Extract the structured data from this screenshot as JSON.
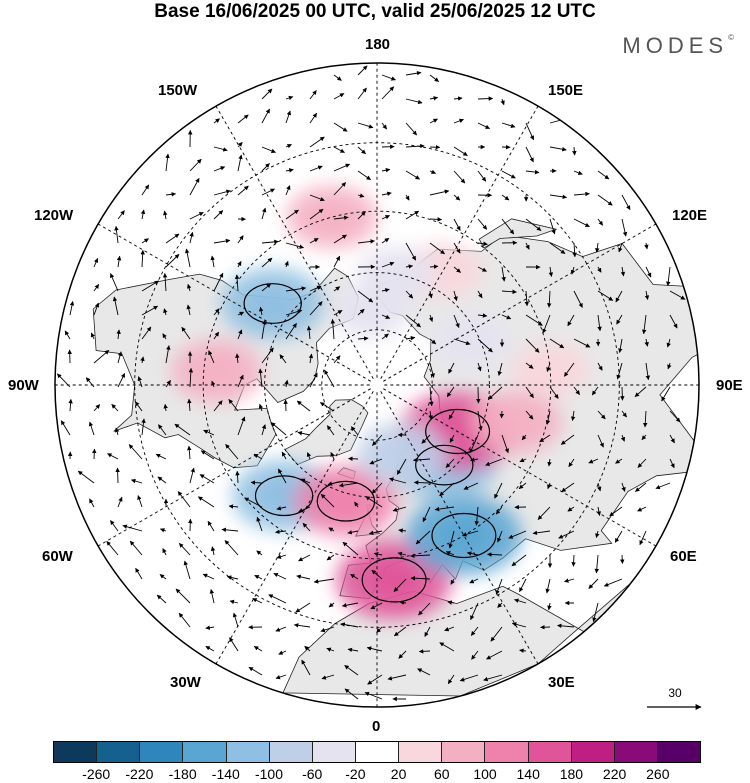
{
  "header": {
    "title": "Base 16/06/2025 00 UTC, valid 25/06/2025 12 UTC",
    "brand": "MODES",
    "brand_mark": "©"
  },
  "map": {
    "projection": "polar-stereographic-north",
    "longitude_labels": {
      "top": "180",
      "bottom": "0",
      "left": "90W",
      "right": "90E",
      "upper_left_1": "150W",
      "upper_left_2": "120W",
      "upper_right_1": "150E",
      "upper_right_2": "120E",
      "lower_left_1": "60W",
      "lower_left_2": "30W",
      "lower_right_1": "60E",
      "lower_right_2": "30E"
    },
    "land_color": "#e8e8e8",
    "ocean_color": "#ffffff",
    "anomaly_centres": [
      {
        "lon": -128,
        "lat": 55,
        "sign": "negative",
        "level": 3
      },
      {
        "lon": -165,
        "lat": 45,
        "sign": "positive",
        "level": 2
      },
      {
        "lon": -95,
        "lat": 48,
        "sign": "positive",
        "level": 2
      },
      {
        "lon": -40,
        "lat": 52,
        "sign": "negative",
        "level": 3
      },
      {
        "lon": -15,
        "lat": 58,
        "sign": "positive",
        "level": 3
      },
      {
        "lon": 5,
        "lat": 40,
        "sign": "positive",
        "level": 4
      },
      {
        "lon": 30,
        "lat": 45,
        "sign": "negative",
        "level": 4
      },
      {
        "lon": 40,
        "lat": 62,
        "sign": "negative",
        "level": 3
      },
      {
        "lon": 60,
        "lat": 65,
        "sign": "positive",
        "level": 4
      },
      {
        "lon": 95,
        "lat": 45,
        "sign": "positive",
        "level": 1
      },
      {
        "lon": 115,
        "lat": 62,
        "sign": "negative",
        "level": 1
      },
      {
        "lon": 150,
        "lat": 55,
        "sign": "positive",
        "level": 1
      },
      {
        "lon": 170,
        "lat": 60,
        "sign": "negative",
        "level": 1
      },
      {
        "lon": -175,
        "lat": 70,
        "sign": "negative",
        "level": 1
      },
      {
        "lon": 75,
        "lat": 52,
        "sign": "positive",
        "level": 2
      },
      {
        "lon": 20,
        "lat": 70,
        "sign": "negative",
        "level": 2
      }
    ],
    "wind_vector_scale": {
      "label": "30"
    }
  },
  "colorbar": {
    "colors": [
      "#0d3a5c",
      "#14618f",
      "#2e86bd",
      "#5aa6d3",
      "#8fbfe2",
      "#bfcfe8",
      "#e6e3f1",
      "#ffffff",
      "#f9d7dc",
      "#f4b0c3",
      "#ee82ad",
      "#e05499",
      "#bf1f83",
      "#8a0a7a",
      "#560068"
    ],
    "tick_labels": [
      "-260",
      "-220",
      "-180",
      "-140",
      "-100",
      "-60",
      "-20",
      "20",
      "60",
      "100",
      "140",
      "180",
      "220",
      "260"
    ]
  }
}
